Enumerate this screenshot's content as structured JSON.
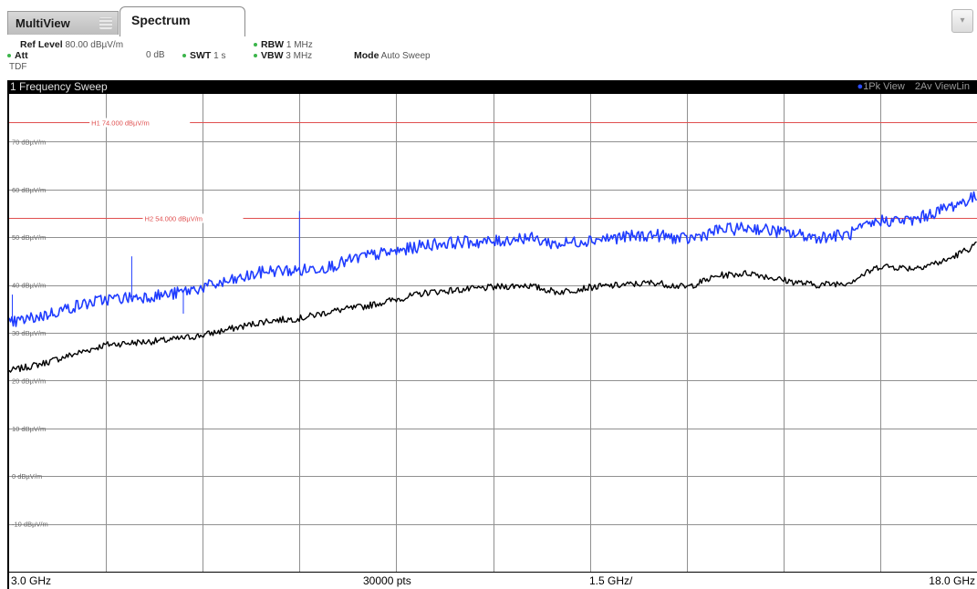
{
  "tabs": [
    {
      "label": "MultiView",
      "active": false
    },
    {
      "label": "Spectrum",
      "active": true
    }
  ],
  "dropdown_icon": "chevron-down-icon",
  "settings": {
    "ref_level_label": "Ref Level",
    "ref_level_value": "80.00 dBµV/m",
    "att_label": "Att",
    "att_value": "0 dB",
    "swt_label": "SWT",
    "swt_value": "1 s",
    "rbw_label": "RBW",
    "rbw_value": "1 MHz",
    "vbw_label": "VBW",
    "vbw_value": "3 MHz",
    "mode_label": "Mode",
    "mode_value": "Auto Sweep",
    "transducer": "TDF"
  },
  "diagram": {
    "title": "1 Frequency Sweep",
    "trace1": "1Pk View",
    "trace2": "2Av ViewLin"
  },
  "footer": {
    "start": "3.0 GHz",
    "points": "30000 pts",
    "span_per_div": "1.5 GHz/",
    "stop": "18.0 GHz"
  },
  "colors": {
    "peak_trace": "#1f3cff",
    "avg_trace": "#000000",
    "limit_line": "#e05050",
    "grid": "#909090"
  },
  "chart_data": {
    "type": "line",
    "title": "1 Frequency Sweep",
    "x_unit": "GHz",
    "y_unit": "dBµV/m",
    "xlim": [
      3.0,
      18.0
    ],
    "ylim": [
      -20,
      80
    ],
    "x_ticks_per_div": 1.5,
    "y_tick_labels": [
      "70 dBµV/m",
      "60 dBµV/m",
      "50 dBµV/m",
      "40 dBµV/m",
      "30 dBµV/m",
      "20 dBµV/m",
      "10 dBµV/m",
      "0 dBµV/m",
      "-10 dBµV/m"
    ],
    "y_tick_values": [
      70,
      60,
      50,
      40,
      30,
      20,
      10,
      0,
      -10
    ],
    "limit_lines": [
      {
        "name": "H1",
        "label": "H1 74.000 dBµV/m",
        "value": 74
      },
      {
        "name": "H2",
        "label": "H2 54.000 dBµV/m",
        "value": 54
      }
    ],
    "series": [
      {
        "name": "1Pk View",
        "color": "#1f3cff",
        "x": [
          3.0,
          3.5,
          4.0,
          4.5,
          5.0,
          5.5,
          6.0,
          6.5,
          7.0,
          7.5,
          8.0,
          8.5,
          9.0,
          9.5,
          10.0,
          10.5,
          11.0,
          11.5,
          12.0,
          12.5,
          13.0,
          13.5,
          14.0,
          14.5,
          15.0,
          15.5,
          16.0,
          16.5,
          17.0,
          17.5,
          18.0
        ],
        "y": [
          32,
          33.5,
          35.5,
          37,
          37.5,
          38,
          39.5,
          41,
          43,
          43,
          44,
          46,
          47,
          48.5,
          49,
          49,
          50,
          48.5,
          49.5,
          50,
          50.5,
          49.5,
          51.5,
          52,
          51,
          50,
          50.5,
          53.5,
          53.5,
          56,
          58.5
        ],
        "spikes": [
          {
            "x": 3.05,
            "y": 38
          },
          {
            "x": 4.9,
            "y": 46
          },
          {
            "x": 5.7,
            "y": 34
          },
          {
            "x": 7.5,
            "y": 55.5
          },
          {
            "x": 16.8,
            "y": 54
          }
        ]
      },
      {
        "name": "2Av ViewLin",
        "color": "#000000",
        "x": [
          3.0,
          3.5,
          4.0,
          4.5,
          5.0,
          5.5,
          6.0,
          6.5,
          7.0,
          7.5,
          8.0,
          8.5,
          9.0,
          9.5,
          10.0,
          10.5,
          11.0,
          11.5,
          12.0,
          12.5,
          13.0,
          13.5,
          14.0,
          14.5,
          15.0,
          15.5,
          16.0,
          16.5,
          17.0,
          17.5,
          18.0
        ],
        "y": [
          22,
          23.5,
          25.5,
          27.5,
          28,
          28.5,
          29.5,
          31,
          32.5,
          33,
          34.5,
          35.5,
          37,
          38.5,
          39,
          39.5,
          40,
          38.5,
          39.5,
          40,
          40.5,
          39.5,
          42,
          42.5,
          41,
          40,
          40.5,
          44,
          43.5,
          45,
          48.5
        ]
      }
    ]
  }
}
